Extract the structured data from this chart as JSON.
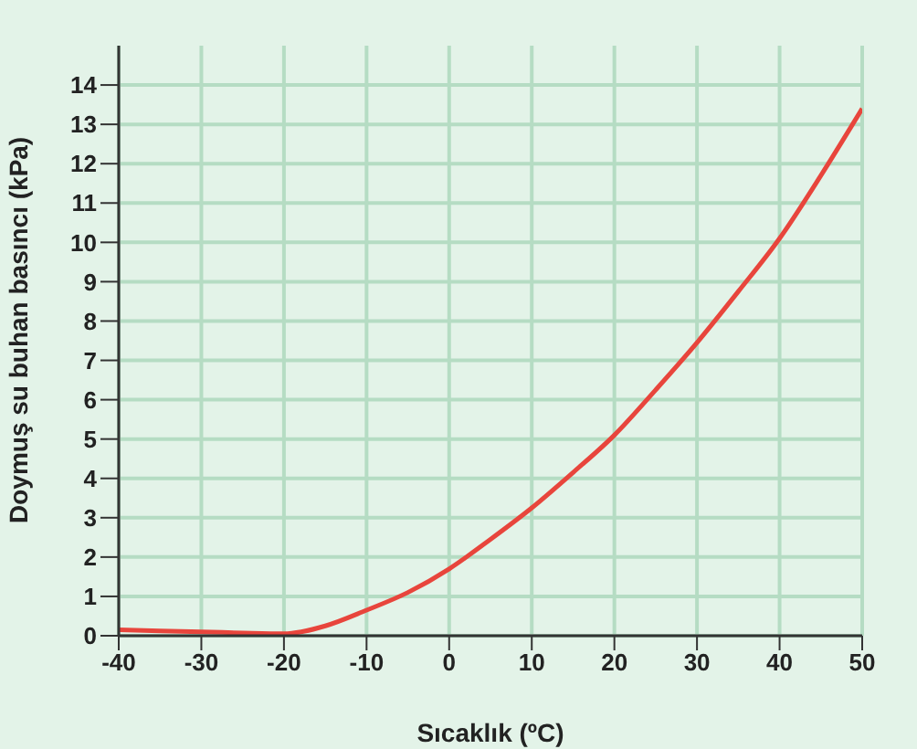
{
  "chart_data": {
    "type": "line",
    "xlabel": "Sıcaklık (ºC)",
    "ylabel": "Doymuş su buhan basıncı (kPa)",
    "x": [
      -40,
      -35,
      -30,
      -25,
      -20,
      -15,
      -10,
      -5,
      0,
      5,
      10,
      15,
      20,
      25,
      30,
      35,
      40,
      45,
      50
    ],
    "series": [
      {
        "color": "#e8453c",
        "values": [
          0.15,
          0.12,
          0.1,
          0.07,
          0.05,
          0.25,
          0.65,
          1.1,
          1.7,
          2.45,
          3.25,
          4.15,
          5.1,
          6.25,
          7.45,
          8.75,
          10.1,
          11.7,
          13.4
        ]
      }
    ],
    "xlim": [
      -40,
      50
    ],
    "xticks": [
      -40,
      -30,
      -20,
      -10,
      0,
      10,
      20,
      30,
      40,
      50
    ],
    "ylim": [
      0,
      15
    ],
    "yticks": [
      0,
      1,
      2,
      3,
      4,
      5,
      6,
      7,
      8,
      9,
      10,
      11,
      12,
      13,
      14
    ],
    "grid": true,
    "marker": "none",
    "line_style": "solid"
  }
}
